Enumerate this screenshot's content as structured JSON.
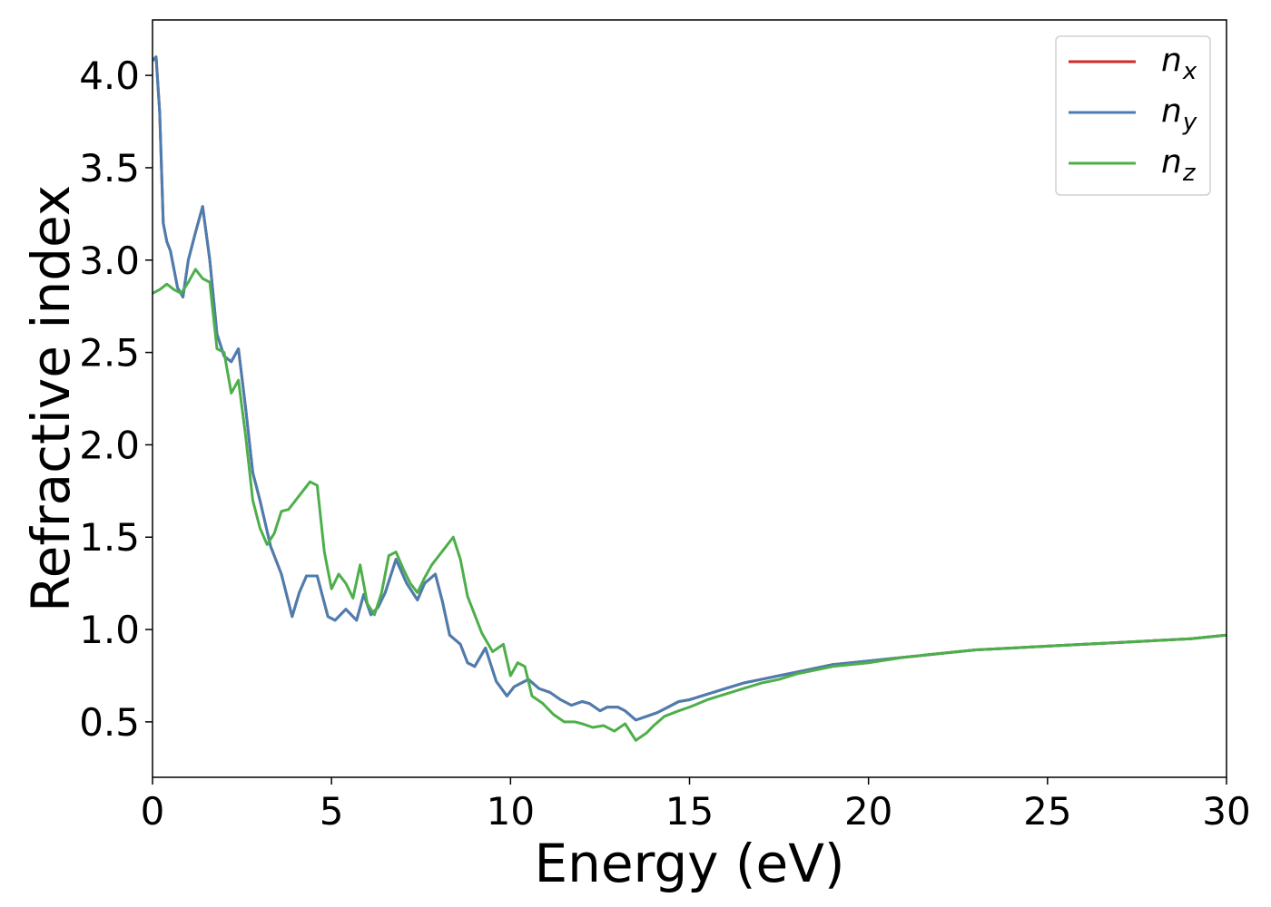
{
  "chart_data": {
    "type": "line",
    "title": "",
    "xlabel": "Energy (eV)",
    "ylabel": "Refractive index",
    "xlim": [
      0,
      30
    ],
    "ylim": [
      0.2,
      4.3
    ],
    "xticks": [
      0,
      5,
      10,
      15,
      20,
      25,
      30
    ],
    "xtick_labels": [
      "0",
      "5",
      "10",
      "15",
      "20",
      "25",
      "30"
    ],
    "yticks": [
      0.5,
      1.0,
      1.5,
      2.0,
      2.5,
      3.0,
      3.5,
      4.0
    ],
    "ytick_labels": [
      "0.5",
      "1.0",
      "1.5",
      "2.0",
      "2.5",
      "3.0",
      "3.5",
      "4.0"
    ],
    "grid": false,
    "legend_position": "top-right",
    "series": [
      {
        "name": "n_x",
        "legend_main": "n",
        "legend_sub": "x",
        "color": "#d62728",
        "x": [
          0,
          0.1,
          0.2,
          0.3,
          0.4,
          0.5,
          0.7,
          0.85,
          1.0,
          1.2,
          1.4,
          1.6,
          1.8,
          2.0,
          2.2,
          2.4,
          2.6,
          2.8,
          3.0,
          3.3,
          3.6,
          3.9,
          4.1,
          4.3,
          4.6,
          4.9,
          5.1,
          5.4,
          5.7,
          5.9,
          6.1,
          6.3,
          6.5,
          6.8,
          7.1,
          7.4,
          7.6,
          7.9,
          8.1,
          8.3,
          8.6,
          8.8,
          9.0,
          9.3,
          9.6,
          9.9,
          10.1,
          10.3,
          10.5,
          10.8,
          11.1,
          11.4,
          11.7,
          12.0,
          12.2,
          12.5,
          12.7,
          13.0,
          13.2,
          13.5,
          13.8,
          14.1,
          14.4,
          14.7,
          15.0,
          15.5,
          16.0,
          16.5,
          17.0,
          17.5,
          18.0,
          18.5,
          19.0,
          19.5,
          20.0,
          21.0,
          22.0,
          23.0,
          24.0,
          25.0,
          26.0,
          27.0,
          28.0,
          29.0,
          30.0
        ],
        "y": [
          4.08,
          4.1,
          3.8,
          3.2,
          3.1,
          3.05,
          2.85,
          2.8,
          3.0,
          3.15,
          3.29,
          3.0,
          2.6,
          2.48,
          2.45,
          2.52,
          2.2,
          1.85,
          1.7,
          1.45,
          1.3,
          1.07,
          1.2,
          1.29,
          1.29,
          1.07,
          1.05,
          1.11,
          1.05,
          1.19,
          1.08,
          1.12,
          1.2,
          1.38,
          1.25,
          1.16,
          1.25,
          1.3,
          1.15,
          0.97,
          0.92,
          0.82,
          0.8,
          0.9,
          0.72,
          0.64,
          0.69,
          0.71,
          0.73,
          0.68,
          0.66,
          0.62,
          0.59,
          0.61,
          0.6,
          0.56,
          0.58,
          0.58,
          0.56,
          0.51,
          0.53,
          0.55,
          0.58,
          0.61,
          0.62,
          0.65,
          0.68,
          0.71,
          0.73,
          0.75,
          0.77,
          0.79,
          0.81,
          0.82,
          0.83,
          0.85,
          0.87,
          0.89,
          0.9,
          0.91,
          0.92,
          0.93,
          0.94,
          0.95,
          0.97
        ]
      },
      {
        "name": "n_y",
        "legend_main": "n",
        "legend_sub": "y",
        "color": "#4a7eb0",
        "x": [
          0,
          0.1,
          0.2,
          0.3,
          0.4,
          0.5,
          0.7,
          0.85,
          1.0,
          1.2,
          1.4,
          1.6,
          1.8,
          2.0,
          2.2,
          2.4,
          2.6,
          2.8,
          3.0,
          3.3,
          3.6,
          3.9,
          4.1,
          4.3,
          4.6,
          4.9,
          5.1,
          5.4,
          5.7,
          5.9,
          6.1,
          6.3,
          6.5,
          6.8,
          7.1,
          7.4,
          7.6,
          7.9,
          8.1,
          8.3,
          8.6,
          8.8,
          9.0,
          9.3,
          9.6,
          9.9,
          10.1,
          10.3,
          10.5,
          10.8,
          11.1,
          11.4,
          11.7,
          12.0,
          12.2,
          12.5,
          12.7,
          13.0,
          13.2,
          13.5,
          13.8,
          14.1,
          14.4,
          14.7,
          15.0,
          15.5,
          16.0,
          16.5,
          17.0,
          17.5,
          18.0,
          18.5,
          19.0,
          19.5,
          20.0,
          21.0,
          22.0,
          23.0,
          24.0,
          25.0,
          26.0,
          27.0,
          28.0,
          29.0,
          30.0
        ],
        "y": [
          4.08,
          4.1,
          3.8,
          3.2,
          3.1,
          3.05,
          2.85,
          2.8,
          3.0,
          3.15,
          3.29,
          3.0,
          2.6,
          2.48,
          2.45,
          2.52,
          2.2,
          1.85,
          1.7,
          1.45,
          1.3,
          1.07,
          1.2,
          1.29,
          1.29,
          1.07,
          1.05,
          1.11,
          1.05,
          1.19,
          1.08,
          1.12,
          1.2,
          1.38,
          1.25,
          1.16,
          1.25,
          1.3,
          1.15,
          0.97,
          0.92,
          0.82,
          0.8,
          0.9,
          0.72,
          0.64,
          0.69,
          0.71,
          0.73,
          0.68,
          0.66,
          0.62,
          0.59,
          0.61,
          0.6,
          0.56,
          0.58,
          0.58,
          0.56,
          0.51,
          0.53,
          0.55,
          0.58,
          0.61,
          0.62,
          0.65,
          0.68,
          0.71,
          0.73,
          0.75,
          0.77,
          0.79,
          0.81,
          0.82,
          0.83,
          0.85,
          0.87,
          0.89,
          0.9,
          0.91,
          0.92,
          0.93,
          0.94,
          0.95,
          0.97
        ]
      },
      {
        "name": "n_z",
        "legend_main": "n",
        "legend_sub": "z",
        "color": "#4daf4a",
        "x": [
          0,
          0.2,
          0.4,
          0.6,
          0.8,
          1.0,
          1.2,
          1.4,
          1.6,
          1.8,
          2.0,
          2.2,
          2.4,
          2.6,
          2.8,
          3.0,
          3.2,
          3.4,
          3.6,
          3.8,
          4.0,
          4.2,
          4.4,
          4.6,
          4.8,
          5.0,
          5.2,
          5.4,
          5.6,
          5.8,
          6.0,
          6.2,
          6.4,
          6.6,
          6.8,
          7.0,
          7.2,
          7.4,
          7.6,
          7.8,
          8.0,
          8.2,
          8.4,
          8.6,
          8.8,
          9.0,
          9.2,
          9.5,
          9.8,
          10.0,
          10.2,
          10.4,
          10.6,
          10.9,
          11.2,
          11.5,
          11.8,
          12.0,
          12.3,
          12.6,
          12.9,
          13.2,
          13.5,
          13.8,
          14.0,
          14.3,
          14.7,
          15.0,
          15.5,
          16.0,
          16.5,
          17.0,
          17.5,
          18.0,
          18.5,
          19.0,
          19.5,
          20.0,
          21.0,
          22.0,
          23.0,
          24.0,
          25.0,
          26.0,
          27.0,
          28.0,
          29.0,
          30.0
        ],
        "y": [
          2.82,
          2.84,
          2.87,
          2.84,
          2.82,
          2.88,
          2.95,
          2.9,
          2.88,
          2.52,
          2.5,
          2.28,
          2.35,
          2.05,
          1.7,
          1.55,
          1.46,
          1.52,
          1.64,
          1.65,
          1.7,
          1.75,
          1.8,
          1.78,
          1.42,
          1.22,
          1.3,
          1.25,
          1.17,
          1.35,
          1.14,
          1.08,
          1.2,
          1.4,
          1.42,
          1.33,
          1.25,
          1.2,
          1.28,
          1.35,
          1.4,
          1.45,
          1.5,
          1.38,
          1.18,
          1.08,
          0.98,
          0.88,
          0.92,
          0.75,
          0.82,
          0.8,
          0.64,
          0.6,
          0.54,
          0.5,
          0.5,
          0.49,
          0.47,
          0.48,
          0.45,
          0.49,
          0.4,
          0.44,
          0.48,
          0.53,
          0.56,
          0.58,
          0.62,
          0.65,
          0.68,
          0.71,
          0.73,
          0.76,
          0.78,
          0.8,
          0.81,
          0.82,
          0.85,
          0.87,
          0.89,
          0.9,
          0.91,
          0.92,
          0.93,
          0.94,
          0.95,
          0.97
        ]
      }
    ]
  }
}
